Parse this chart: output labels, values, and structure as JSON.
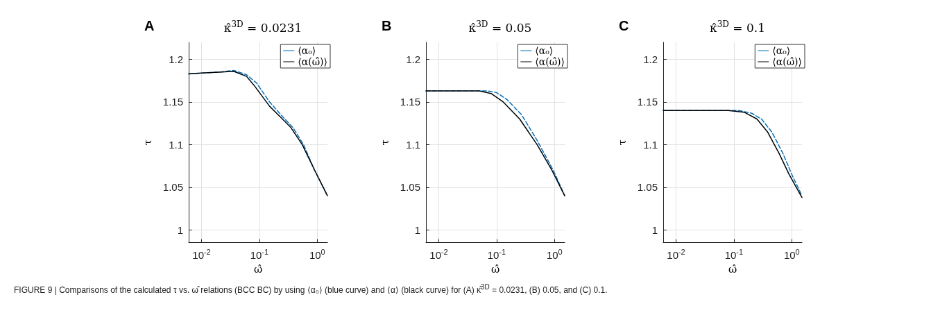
{
  "chart_data": [
    {
      "type": "line",
      "title": "κ̂$^{3D}$ = 0.0231",
      "xlabel": "ω̂",
      "ylabel": "τ",
      "annotations": [
        "A",
        "FIGURE 9 | Comparisons of the calculated τ vs. ω̂ relations (BCC BC) by using ⟨α₀⟩ (blue curve) and ⟨α⟩ (black curve) for (A) κ̂$^{3D}$ = 0.0231, (B) 0.05, and (C) 0.1."
      ],
      "log": "x",
      "xlim": [
        0.006,
        1.5
      ],
      "ylim": [
        0.985,
        1.22
      ],
      "xticks": [
        {
          "value": 0.01,
          "label": "10$^{-2}$"
        },
        {
          "value": 0.1,
          "label": "10$^{-1}$"
        },
        {
          "value": 1,
          "label": "10$^{0}$"
        }
      ],
      "yticks": [
        1,
        1.05,
        1.1,
        1.15,
        1.2
      ],
      "grid": true,
      "legend": "top right",
      "marker": "none",
      "series": [
        {
          "name": "⟨α₀⟩",
          "color": "#0072bd",
          "line_style": "dashed",
          "x": [
            0.006,
            0.01,
            0.02,
            0.036,
            0.06,
            0.09,
            0.15,
            0.25,
            0.38,
            0.58,
            0.9,
            1.5
          ],
          "values": [
            1.183,
            1.184,
            1.185,
            1.187,
            1.182,
            1.172,
            1.15,
            1.133,
            1.12,
            1.1,
            1.07,
            1.04
          ]
        },
        {
          "name": "⟨α(ω̂)⟩",
          "color": "#000000",
          "line_style": "solid",
          "x": [
            0.006,
            0.01,
            0.02,
            0.036,
            0.06,
            0.08,
            0.15,
            0.25,
            0.35,
            0.55,
            0.9,
            1.5
          ],
          "values": [
            1.183,
            1.184,
            1.185,
            1.186,
            1.18,
            1.17,
            1.145,
            1.13,
            1.12,
            1.1,
            1.07,
            1.04
          ]
        }
      ]
    },
    {
      "type": "line",
      "title": "κ̂$^{3D}$ = 0.05",
      "xlabel": "ω̂",
      "ylabel": "τ",
      "annotations": [
        "B"
      ],
      "log": "x",
      "xlim": [
        0.006,
        1.5
      ],
      "ylim": [
        0.985,
        1.22
      ],
      "xticks": [
        {
          "value": 0.01,
          "label": "10$^{-2}$"
        },
        {
          "value": 0.1,
          "label": "10$^{-1}$"
        },
        {
          "value": 1,
          "label": "10$^{0}$"
        }
      ],
      "yticks": [
        1,
        1.05,
        1.1,
        1.15,
        1.2
      ],
      "grid": true,
      "legend": "top right",
      "marker": "none",
      "series": [
        {
          "name": "⟨α₀⟩",
          "color": "#0072bd",
          "line_style": "dashed",
          "x": [
            0.006,
            0.02,
            0.05,
            0.07,
            0.1,
            0.15,
            0.27,
            0.5,
            0.95,
            1.5
          ],
          "values": [
            1.163,
            1.163,
            1.163,
            1.163,
            1.161,
            1.153,
            1.135,
            1.105,
            1.07,
            1.04
          ]
        },
        {
          "name": "⟨α(ω̂)⟩",
          "color": "#000000",
          "line_style": "solid",
          "x": [
            0.006,
            0.02,
            0.05,
            0.08,
            0.13,
            0.25,
            0.5,
            0.9,
            1.5
          ],
          "values": [
            1.163,
            1.163,
            1.163,
            1.16,
            1.15,
            1.13,
            1.1,
            1.07,
            1.04
          ]
        }
      ]
    },
    {
      "type": "line",
      "title": "κ̂$^{3D}$ = 0.1",
      "xlabel": "ω̂",
      "ylabel": "τ",
      "annotations": [
        "C"
      ],
      "log": "x",
      "xlim": [
        0.006,
        1.5
      ],
      "ylim": [
        0.985,
        1.22
      ],
      "xticks": [
        {
          "value": 0.01,
          "label": "10$^{-2}$"
        },
        {
          "value": 0.1,
          "label": "10$^{-1}$"
        },
        {
          "value": 1,
          "label": "10$^{0}$"
        }
      ],
      "yticks": [
        1,
        1.05,
        1.1,
        1.15,
        1.2
      ],
      "grid": true,
      "legend": "top right",
      "marker": "none",
      "series": [
        {
          "name": "⟨α₀⟩",
          "color": "#0072bd",
          "line_style": "dashed",
          "x": [
            0.006,
            0.03,
            0.08,
            0.12,
            0.2,
            0.3,
            0.45,
            0.7,
            1,
            1.5
          ],
          "values": [
            1.14,
            1.14,
            1.14,
            1.14,
            1.137,
            1.13,
            1.115,
            1.09,
            1.065,
            1.04
          ]
        },
        {
          "name": "⟨α(ω̂)⟩",
          "color": "#000000",
          "line_style": "solid",
          "x": [
            0.006,
            0.03,
            0.08,
            0.15,
            0.25,
            0.38,
            0.6,
            0.9,
            1.5
          ],
          "values": [
            1.14,
            1.14,
            1.14,
            1.138,
            1.13,
            1.115,
            1.09,
            1.065,
            1.038
          ]
        }
      ]
    }
  ]
}
